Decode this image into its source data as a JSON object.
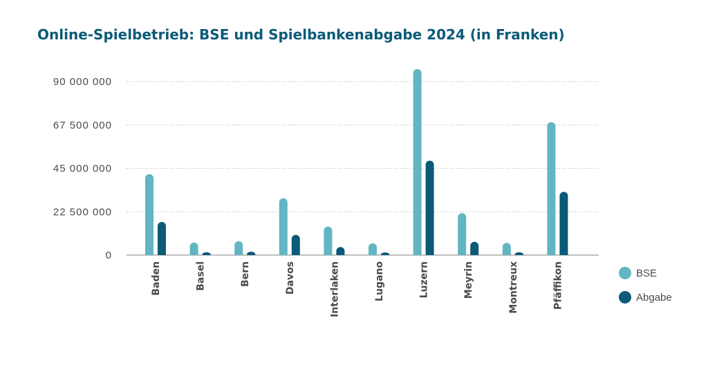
{
  "chart_data": {
    "type": "bar",
    "title": "Online-Spielbetrieb: BSE und Spielbankenabgabe 2024 (in Franken)",
    "xlabel": "",
    "ylabel": "",
    "ylim": [
      0,
      90000000
    ],
    "yticks": [
      {
        "value": 0,
        "label": "0"
      },
      {
        "value": 22500000,
        "label": "22 500 000"
      },
      {
        "value": 45000000,
        "label": "45 000 000"
      },
      {
        "value": 67500000,
        "label": "67 500 000"
      },
      {
        "value": 90000000,
        "label": "90 000 000"
      }
    ],
    "grid": true,
    "legend": "right",
    "categories": [
      "Baden",
      "Basel",
      "Bern",
      "Davos",
      "Interlaken",
      "Lugano",
      "Luzern",
      "Meyrin",
      "Montreux",
      "Pfäffikon"
    ],
    "series": [
      {
        "name": "BSE",
        "color": "#62b5c2",
        "values": [
          42000000,
          6500000,
          7200000,
          29500000,
          14800000,
          6100000,
          96500000,
          21800000,
          6300000,
          69000000
        ]
      },
      {
        "name": "Abgabe",
        "color": "#0b5a78",
        "values": [
          17200000,
          1500000,
          1800000,
          10500000,
          4200000,
          1400000,
          49000000,
          6900000,
          1500000,
          32800000
        ]
      }
    ]
  }
}
